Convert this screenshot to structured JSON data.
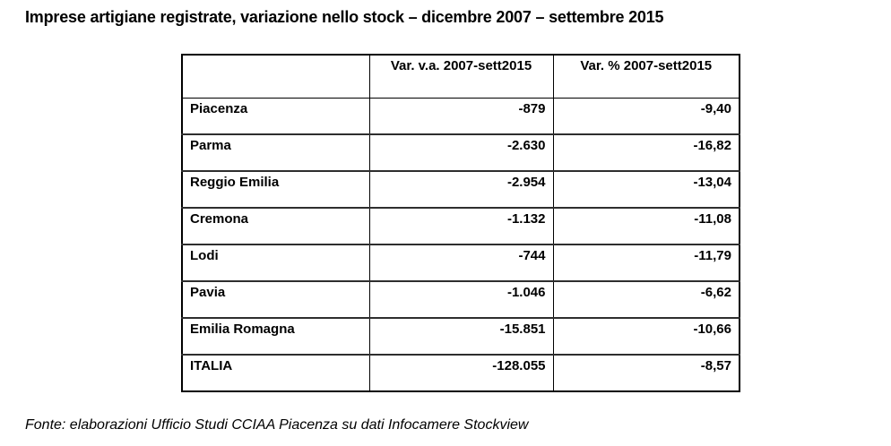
{
  "page": {
    "title": "Imprese artigiane registrate, variazione nello stock – dicembre 2007 – settembre 2015",
    "source_note": "Fonte: elaborazioni Ufficio Studi CCIAA Piacenza su dati Infocamere Stockview"
  },
  "chart_data": {
    "type": "table",
    "title": "Imprese artigiane registrate, variazione nello stock – dicembre 2007 – settembre 2015",
    "columns": [
      "",
      "Var. v.a. 2007-sett2015",
      "Var. % 2007-sett2015"
    ],
    "rows": [
      {
        "label": "Piacenza",
        "var_va": "-879",
        "var_pct": "-9,40"
      },
      {
        "label": "Parma",
        "var_va": "-2.630",
        "var_pct": "-16,82"
      },
      {
        "label": "Reggio Emilia",
        "var_va": "-2.954",
        "var_pct": "-13,04"
      },
      {
        "label": "Cremona",
        "var_va": "-1.132",
        "var_pct": "-11,08"
      },
      {
        "label": "Lodi",
        "var_va": "-744",
        "var_pct": "-11,79"
      },
      {
        "label": "Pavia",
        "var_va": "-1.046",
        "var_pct": "-6,62"
      },
      {
        "label": "Emilia Romagna",
        "var_va": "-15.851",
        "var_pct": "-10,66"
      },
      {
        "label": "ITALIA",
        "var_va": "-128.055",
        "var_pct": "-8,57"
      }
    ],
    "source_note": "Fonte: elaborazioni Ufficio Studi CCIAA Piacenza su dati Infocamere Stockview"
  }
}
